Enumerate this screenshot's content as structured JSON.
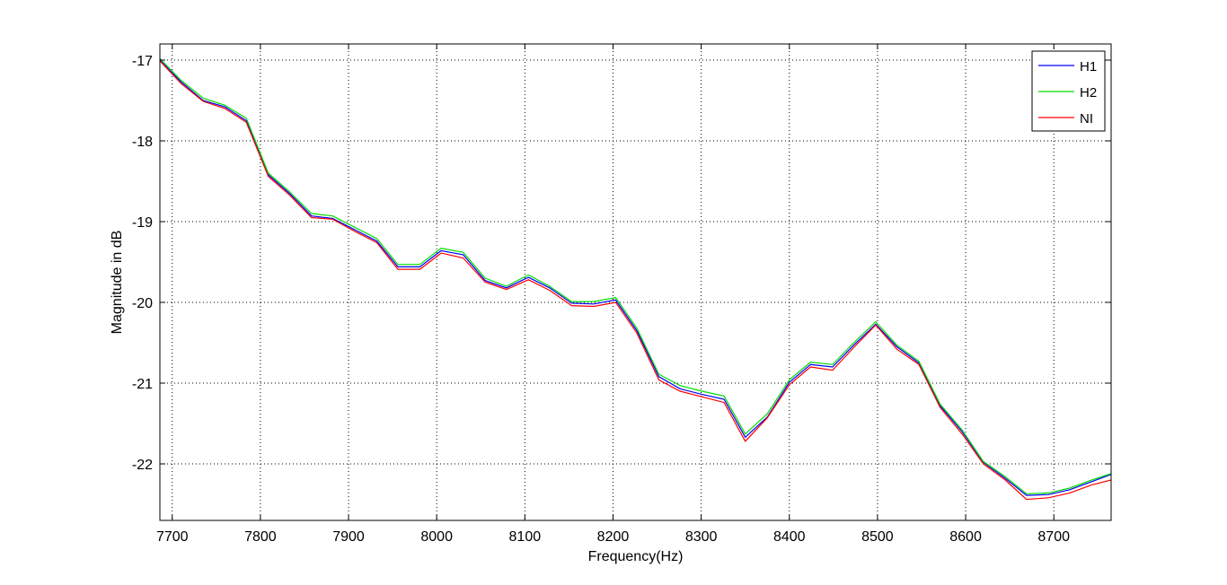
{
  "chart_data": {
    "type": "line",
    "title": "",
    "xlabel": "Frequency(Hz)",
    "ylabel": "Magnitude in dB",
    "xlim": [
      7686,
      8765
    ],
    "ylim": [
      -22.7,
      -16.8
    ],
    "xticks": [
      7700,
      7800,
      7900,
      8000,
      8100,
      8200,
      8300,
      8400,
      8500,
      8600,
      8700
    ],
    "yticks": [
      -17,
      -18,
      -19,
      -20,
      -21,
      -22
    ],
    "grid": true,
    "legend_position": "top-right",
    "x": [
      7686,
      7710,
      7735,
      7760,
      7784,
      7809,
      7833,
      7858,
      7882,
      7907,
      7932,
      7956,
      7981,
      8005,
      8030,
      8055,
      8079,
      8104,
      8128,
      8153,
      8178,
      8203,
      8227,
      8252,
      8276,
      8301,
      8326,
      8350,
      8375,
      8400,
      8424,
      8449,
      8473,
      8498,
      8522,
      8547,
      8571,
      8596,
      8620,
      8645,
      8669,
      8694,
      8718,
      8743,
      8765
    ],
    "series": [
      {
        "name": "H1",
        "color": "#0000ff",
        "values": [
          -17.0,
          -17.27,
          -17.5,
          -17.58,
          -17.75,
          -18.42,
          -18.65,
          -18.93,
          -18.96,
          -19.1,
          -19.24,
          -19.56,
          -19.56,
          -19.36,
          -19.41,
          -19.73,
          -19.82,
          -19.69,
          -19.82,
          -20.01,
          -20.02,
          -19.97,
          -20.35,
          -20.92,
          -21.07,
          -21.14,
          -21.2,
          -21.67,
          -21.42,
          -20.99,
          -20.77,
          -20.8,
          -20.53,
          -20.27,
          -20.55,
          -20.75,
          -21.28,
          -21.6,
          -21.98,
          -22.18,
          -22.39,
          -22.38,
          -22.32,
          -22.22,
          -22.13
        ]
      },
      {
        "name": "H2",
        "color": "#00dd00",
        "values": [
          -16.98,
          -17.25,
          -17.47,
          -17.56,
          -17.72,
          -18.4,
          -18.63,
          -18.9,
          -18.93,
          -19.07,
          -19.21,
          -19.53,
          -19.53,
          -19.33,
          -19.38,
          -19.7,
          -19.8,
          -19.66,
          -19.8,
          -19.99,
          -19.99,
          -19.94,
          -20.32,
          -20.89,
          -21.03,
          -21.1,
          -21.16,
          -21.63,
          -21.38,
          -20.96,
          -20.74,
          -20.77,
          -20.5,
          -20.24,
          -20.53,
          -20.73,
          -21.26,
          -21.58,
          -21.97,
          -22.16,
          -22.37,
          -22.36,
          -22.3,
          -22.2,
          -22.12
        ]
      },
      {
        "name": "NI",
        "color": "#ff0000",
        "values": [
          -17.01,
          -17.29,
          -17.51,
          -17.6,
          -17.77,
          -18.44,
          -18.67,
          -18.95,
          -18.97,
          -19.12,
          -19.26,
          -19.59,
          -19.59,
          -19.39,
          -19.45,
          -19.75,
          -19.84,
          -19.72,
          -19.85,
          -20.04,
          -20.05,
          -20.0,
          -20.38,
          -20.96,
          -21.1,
          -21.17,
          -21.24,
          -21.72,
          -21.43,
          -21.02,
          -20.8,
          -20.84,
          -20.56,
          -20.28,
          -20.58,
          -20.77,
          -21.3,
          -21.63,
          -22.0,
          -22.2,
          -22.44,
          -22.42,
          -22.36,
          -22.26,
          -22.2
        ]
      }
    ]
  }
}
